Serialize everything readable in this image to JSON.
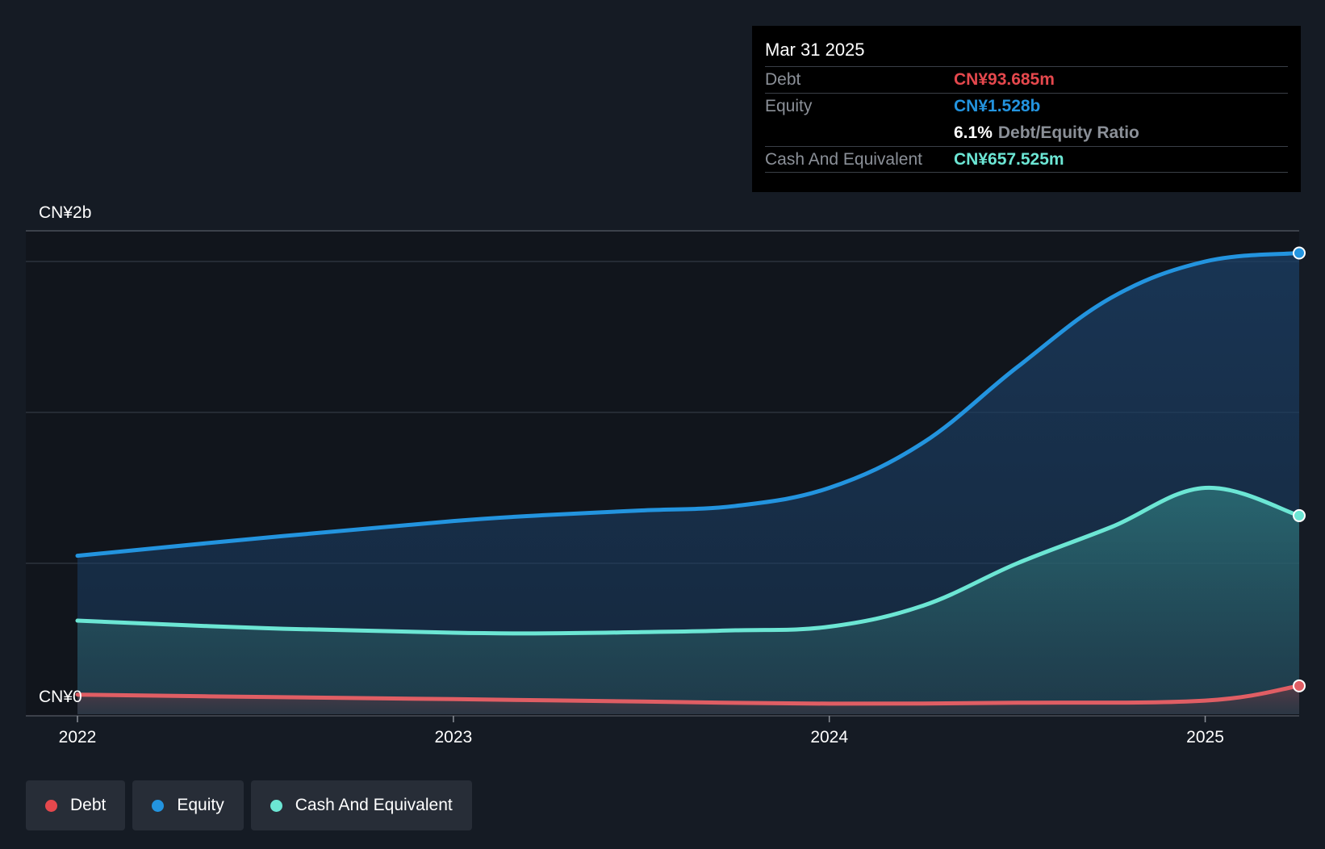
{
  "tooltip": {
    "date": "Mar 31 2025",
    "debt_label": "Debt",
    "debt_value": "CN¥93.685m",
    "equity_label": "Equity",
    "equity_value": "CN¥1.528b",
    "ratio_value": "6.1%",
    "ratio_label": "Debt/Equity Ratio",
    "cash_label": "Cash And Equivalent",
    "cash_value": "CN¥657.525m"
  },
  "legend": [
    {
      "label": "Debt",
      "color": "#e5484d"
    },
    {
      "label": "Equity",
      "color": "#2394df"
    },
    {
      "label": "Cash And Equivalent",
      "color": "#6ce6d4"
    }
  ],
  "colors": {
    "debt": "#e05e64",
    "equity": "#2394df",
    "cash": "#6ce6d4",
    "background": "#151b24"
  },
  "chart_data": {
    "type": "area",
    "y_unit": "CN¥",
    "ylim": [
      0,
      1.6
    ],
    "y_tick_labels": [
      {
        "value": 1.6,
        "label": "CN¥2b"
      },
      {
        "value": 0,
        "label": "CN¥0"
      }
    ],
    "x_ticks": [
      2022,
      2023,
      2024,
      2025
    ],
    "x_tick_labels": [
      "2022",
      "2023",
      "2024",
      "2025"
    ],
    "xlim": [
      2022,
      2025.25
    ],
    "grid": true,
    "series": [
      {
        "name": "Equity",
        "key": "equity",
        "unit": "CN¥b",
        "points": [
          [
            2022.0,
            0.525
          ],
          [
            2022.5,
            0.585
          ],
          [
            2023.0,
            0.64
          ],
          [
            2023.25,
            0.66
          ],
          [
            2023.5,
            0.675
          ],
          [
            2023.75,
            0.69
          ],
          [
            2024.0,
            0.75
          ],
          [
            2024.25,
            0.9
          ],
          [
            2024.5,
            1.15
          ],
          [
            2024.75,
            1.38
          ],
          [
            2025.0,
            1.5
          ],
          [
            2025.25,
            1.528
          ]
        ]
      },
      {
        "name": "Cash And Equivalent",
        "key": "cash",
        "unit": "CN¥b",
        "points": [
          [
            2022.0,
            0.31
          ],
          [
            2022.5,
            0.285
          ],
          [
            2023.0,
            0.27
          ],
          [
            2023.25,
            0.268
          ],
          [
            2023.5,
            0.272
          ],
          [
            2023.75,
            0.278
          ],
          [
            2024.0,
            0.29
          ],
          [
            2024.25,
            0.36
          ],
          [
            2024.5,
            0.5
          ],
          [
            2024.75,
            0.62
          ],
          [
            2025.0,
            0.75
          ],
          [
            2025.25,
            0.658
          ]
        ]
      },
      {
        "name": "Debt",
        "key": "debt",
        "unit": "CN¥b",
        "points": [
          [
            2022.0,
            0.065
          ],
          [
            2022.5,
            0.057
          ],
          [
            2023.0,
            0.05
          ],
          [
            2023.5,
            0.042
          ],
          [
            2024.0,
            0.035
          ],
          [
            2024.5,
            0.038
          ],
          [
            2025.0,
            0.045
          ],
          [
            2025.25,
            0.094
          ]
        ]
      }
    ]
  }
}
